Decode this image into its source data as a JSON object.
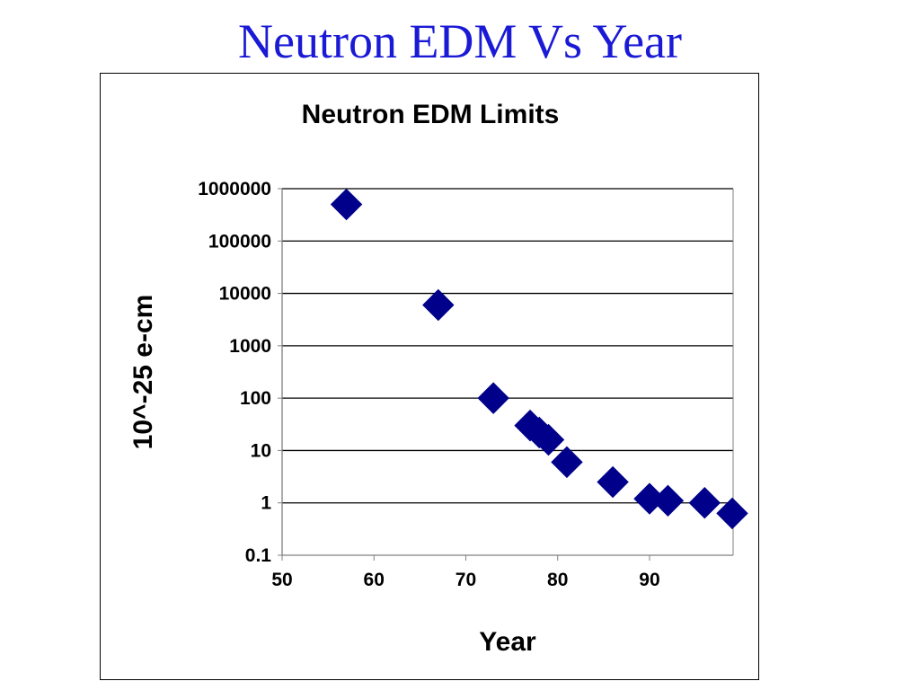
{
  "slide": {
    "title": "Neutron EDM Vs Year"
  },
  "chart_data": {
    "type": "scatter",
    "title": "Neutron EDM Limits",
    "xlabel": "Year",
    "ylabel": "10^-25 e-cm",
    "x_ticks": [
      "50",
      "60",
      "70",
      "80",
      "90"
    ],
    "y_ticks": [
      "1000000",
      "100000",
      "10000",
      "1000",
      "100",
      "10",
      "1",
      "0.1"
    ],
    "xlim": [
      50,
      99
    ],
    "ylim": [
      0.1,
      1000000
    ],
    "y_scale": "log",
    "grid": "horizontal",
    "marker": "diamond",
    "marker_color": "#00008b",
    "series": [
      {
        "x": [
          57,
          67,
          73,
          77,
          78,
          79,
          81,
          86,
          90,
          92,
          96,
          99
        ],
        "y": [
          500000,
          6000,
          100,
          30,
          22,
          16,
          6,
          2.5,
          1.2,
          1.1,
          1.0,
          0.63
        ]
      }
    ]
  }
}
